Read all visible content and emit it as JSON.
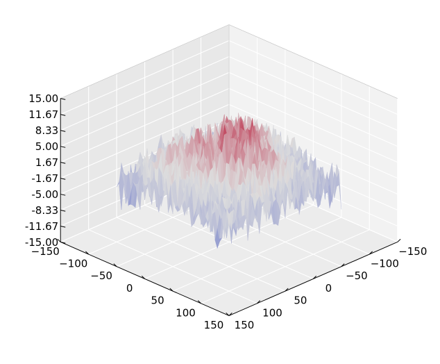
{
  "chart_data": {
    "type": "surface-3d",
    "title": "",
    "xlabel": "",
    "ylabel": "",
    "zlabel": "",
    "colormap": "coolwarm",
    "colors": {
      "low": "#3b4cc0",
      "mid": "#dddddd",
      "high": "#b40426",
      "pane_left": "#e8e8e8",
      "pane_right": "#f2f2f2",
      "pane_floor": "#ececec",
      "grid": "#ffffff"
    },
    "x_ticks": [
      "−150",
      "−100",
      "−50",
      "0",
      "50",
      "100",
      "150"
    ],
    "y_ticks": [
      "−150",
      "−100",
      "−50",
      "0",
      "50",
      "100",
      "150"
    ],
    "z_ticks": [
      "-15.00",
      "-11.67",
      "-8.33",
      "-5.00",
      "-1.67",
      "1.67",
      "5.00",
      "8.33",
      "11.67",
      "15.00"
    ],
    "x_range": [
      -150,
      150
    ],
    "y_range": [
      -150,
      150
    ],
    "z_range": [
      -15.0,
      15.0
    ],
    "surface_extent": [
      -100,
      100
    ],
    "surface_z_range_approx": [
      -10,
      12
    ],
    "view": "azimuth 45°, elevation 30°",
    "grid": true
  }
}
